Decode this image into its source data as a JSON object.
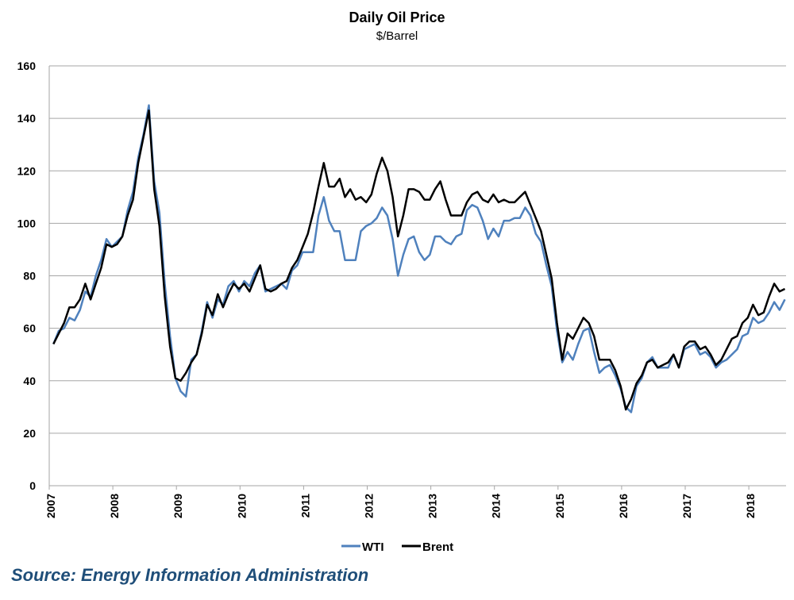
{
  "chart_data": {
    "type": "line",
    "title": "Daily Oil Price",
    "subtitle": "$/Barrel",
    "xlabel": "",
    "ylabel": "",
    "ylim": [
      0,
      160
    ],
    "yticks": [
      0,
      20,
      40,
      60,
      80,
      100,
      120,
      140,
      160
    ],
    "xlim": [
      2007,
      2018.58
    ],
    "xticks": [
      "2007",
      "2008",
      "2009",
      "2010",
      "2011",
      "2012",
      "2013",
      "2014",
      "2015",
      "2016",
      "2017",
      "2018"
    ],
    "grid": true,
    "legend_position": "bottom",
    "x_start": 2007,
    "x_step_months": 1,
    "series": [
      {
        "name": "WTI",
        "color": "#4F81BD",
        "values": [
          54,
          59,
          60,
          64,
          63,
          67,
          74,
          72,
          80,
          86,
          94,
          91,
          93,
          95,
          105,
          112,
          125,
          134,
          145,
          116,
          104,
          77,
          57,
          41,
          36,
          34,
          48,
          50,
          59,
          70,
          64,
          71,
          69,
          76,
          78,
          74,
          78,
          76,
          81,
          84,
          74,
          75,
          76,
          77,
          75,
          82,
          84,
          89,
          89,
          89,
          103,
          110,
          101,
          97,
          97,
          86,
          86,
          86,
          97,
          99,
          100,
          102,
          106,
          103,
          94,
          80,
          88,
          94,
          95,
          89,
          86,
          88,
          95,
          95,
          93,
          92,
          95,
          96,
          105,
          107,
          106,
          101,
          94,
          98,
          95,
          101,
          101,
          102,
          102,
          106,
          103,
          96,
          93,
          84,
          76,
          59,
          47,
          51,
          48,
          54,
          59,
          60,
          51,
          43,
          45,
          46,
          42,
          37,
          30,
          28,
          38,
          41,
          47,
          49,
          45,
          45,
          45,
          50,
          45,
          52,
          53,
          54,
          50,
          51,
          49,
          45,
          47,
          48,
          50,
          52,
          57,
          58,
          64,
          62,
          63,
          66,
          70,
          67,
          71
        ]
      },
      {
        "name": "Brent",
        "color": "#000000",
        "values": [
          54,
          58,
          62,
          68,
          68,
          71,
          77,
          71,
          77,
          83,
          92,
          91,
          92,
          95,
          103,
          109,
          123,
          133,
          143,
          113,
          99,
          72,
          53,
          41,
          40,
          43,
          47,
          50,
          58,
          69,
          65,
          73,
          68,
          73,
          77,
          75,
          77,
          74,
          79,
          84,
          75,
          74,
          75,
          77,
          78,
          83,
          86,
          91,
          96,
          104,
          114,
          123,
          114,
          114,
          117,
          110,
          113,
          109,
          110,
          108,
          111,
          119,
          125,
          120,
          110,
          95,
          103,
          113,
          113,
          112,
          109,
          109,
          113,
          116,
          109,
          103,
          103,
          103,
          108,
          111,
          112,
          109,
          108,
          111,
          108,
          109,
          108,
          108,
          110,
          112,
          107,
          102,
          97,
          88,
          79,
          62,
          48,
          58,
          56,
          60,
          64,
          62,
          57,
          48,
          48,
          48,
          44,
          38,
          29,
          33,
          39,
          42,
          47,
          48,
          45,
          46,
          47,
          50,
          45,
          53,
          55,
          55,
          52,
          53,
          50,
          46,
          48,
          52,
          56,
          57,
          62,
          64,
          69,
          65,
          66,
          72,
          77,
          74,
          75
        ]
      }
    ]
  },
  "source": "Source: Energy Information Administration"
}
